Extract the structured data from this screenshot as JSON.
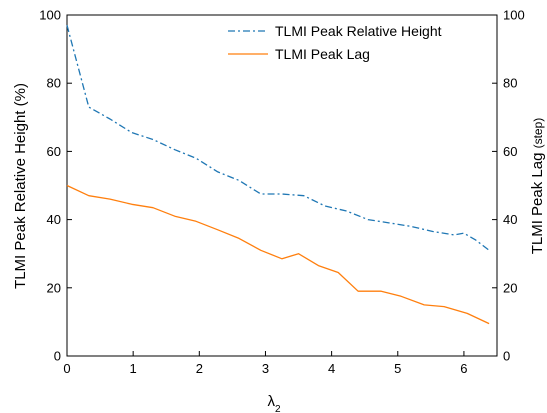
{
  "chart_data": {
    "type": "line",
    "xlabel": "λ",
    "xlabel_subscript": "2",
    "ylabel_left": "TLMI Peak Relative Height (%)",
    "ylabel_right_main": "TLMI Peak Lag",
    "ylabel_right_unit": "(step)",
    "xlim": [
      0,
      6.5
    ],
    "ylim_left": [
      0,
      100
    ],
    "ylim_right": [
      0,
      100
    ],
    "x_ticks": [
      0,
      1,
      2,
      3,
      4,
      5,
      6
    ],
    "y_ticks_left": [
      0,
      20,
      40,
      60,
      80,
      100
    ],
    "y_ticks_right": [
      0,
      20,
      40,
      60,
      80,
      100
    ],
    "grid": false,
    "legend_position": "top-right",
    "series": [
      {
        "name": "TLMI Peak Relative Height",
        "axis": "left",
        "color": "#1f77b4",
        "line_style": "dash-dot",
        "x": [
          0,
          0.33,
          0.65,
          0.98,
          1.3,
          1.63,
          1.95,
          2.28,
          2.6,
          2.93,
          3.25,
          3.58,
          3.9,
          4.23,
          4.55,
          4.88,
          5.2,
          5.53,
          5.85,
          6.0,
          6.18,
          6.38
        ],
        "values": [
          97,
          73,
          69.5,
          65.5,
          63.5,
          60.5,
          58,
          54,
          51.5,
          47.5,
          47.5,
          47,
          44,
          42.5,
          40,
          39,
          38,
          36.5,
          35.5,
          36,
          34,
          31
        ]
      },
      {
        "name": "TLMI Peak Lag",
        "axis": "right",
        "color": "#ff7f0e",
        "line_style": "solid",
        "x": [
          0,
          0.33,
          0.65,
          0.98,
          1.3,
          1.63,
          1.95,
          2.28,
          2.6,
          2.93,
          3.25,
          3.5,
          3.8,
          4.1,
          4.4,
          4.75,
          5.05,
          5.4,
          5.7,
          6.05,
          6.38
        ],
        "values": [
          50,
          47,
          46,
          44.5,
          43.5,
          41,
          39.5,
          37,
          34.5,
          31,
          28.5,
          30,
          26.5,
          24.5,
          19,
          19,
          17.5,
          15,
          14.5,
          12.5,
          9.5
        ]
      }
    ]
  }
}
